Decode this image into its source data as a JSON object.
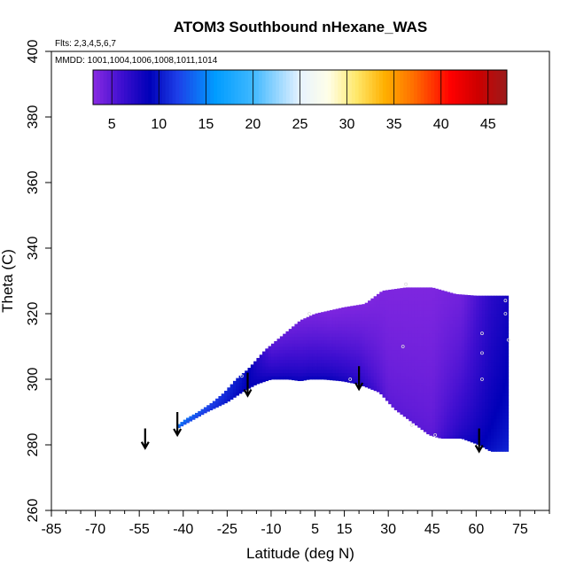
{
  "chart_data": {
    "type": "heatmap",
    "title": "ATOM3 Southbound nHexane_WAS",
    "flights_note": "Flts: 2,3,4,5,6,7",
    "dates_note": "MMDD: 1001,1004,1006,1008,1011,1014",
    "xlabel": "Latitude (deg N)",
    "ylabel": "Theta (C)",
    "xlim": [
      -85,
      85
    ],
    "ylim": [
      260,
      400
    ],
    "x_tick_labels": [
      "-85",
      "-70",
      "-55",
      "-40",
      "-25",
      "-10",
      "5",
      "15",
      "30",
      "45",
      "60",
      "75"
    ],
    "x_minor_ticks": [
      -80,
      -75,
      -65,
      -60,
      -50,
      -45,
      -35,
      -30,
      -20,
      -15,
      -5,
      0,
      10,
      20,
      25,
      35,
      40,
      50,
      55,
      65,
      70,
      80,
      85
    ],
    "y_tick_labels": [
      "260",
      "280",
      "300",
      "320",
      "340",
      "360",
      "380",
      "400"
    ],
    "colorbar": {
      "min": 3,
      "max": 47,
      "tick_labels": [
        "5",
        "10",
        "15",
        "20",
        "25",
        "30",
        "35",
        "40",
        "45"
      ],
      "dividers": [
        3,
        5,
        10,
        15,
        20,
        25,
        30,
        35,
        40,
        45,
        47
      ],
      "color_stops": [
        {
          "v": 3,
          "c": "#8a2be2"
        },
        {
          "v": 6,
          "c": "#3f0fd0"
        },
        {
          "v": 9,
          "c": "#0000b8"
        },
        {
          "v": 12,
          "c": "#1d3fe8"
        },
        {
          "v": 16,
          "c": "#009cff"
        },
        {
          "v": 20,
          "c": "#3fb8ff"
        },
        {
          "v": 25,
          "c": "#e6f2ff"
        },
        {
          "v": 28,
          "c": "#ffffe8"
        },
        {
          "v": 31,
          "c": "#ffe86b"
        },
        {
          "v": 34,
          "c": "#ffb000"
        },
        {
          "v": 37,
          "c": "#ff7000"
        },
        {
          "v": 41,
          "c": "#ff0000"
        },
        {
          "v": 44,
          "c": "#cc0000"
        },
        {
          "v": 47,
          "c": "#9b1c1c"
        }
      ]
    },
    "field": {
      "bottom_boundary": [
        [
          -42,
          285
        ],
        [
          -38,
          287
        ],
        [
          -32,
          290
        ],
        [
          -25,
          293
        ],
        [
          -20,
          296
        ],
        [
          -15,
          298.5
        ],
        [
          -10,
          300
        ],
        [
          -4,
          300
        ],
        [
          0,
          299.5
        ],
        [
          3,
          300
        ],
        [
          8,
          300
        ],
        [
          14,
          299.5
        ],
        [
          20,
          298.5
        ],
        [
          27,
          296
        ],
        [
          32,
          291
        ],
        [
          38,
          287
        ],
        [
          44,
          283
        ],
        [
          48,
          282
        ],
        [
          55,
          282
        ],
        [
          61,
          280
        ],
        [
          65,
          278
        ],
        [
          71,
          278
        ]
      ],
      "top_boundary": [
        [
          -42,
          286
        ],
        [
          -39,
          288
        ],
        [
          -35,
          290
        ],
        [
          -30,
          293
        ],
        [
          -26,
          296
        ],
        [
          -22,
          300
        ],
        [
          -18,
          303
        ],
        [
          -15,
          306
        ],
        [
          -12,
          309
        ],
        [
          -8,
          312
        ],
        [
          -4,
          315
        ],
        [
          0,
          318
        ],
        [
          5,
          320
        ],
        [
          10,
          321
        ],
        [
          15,
          322
        ],
        [
          22,
          323
        ],
        [
          28,
          327
        ],
        [
          36,
          328
        ],
        [
          45,
          328
        ],
        [
          53,
          326
        ],
        [
          60,
          325.5
        ],
        [
          70,
          325.5
        ],
        [
          71,
          276
        ]
      ],
      "value_profiles": [
        {
          "lat": -42,
          "bottom": 12,
          "top": 15
        },
        {
          "lat": -30,
          "bottom": 11,
          "top": 12
        },
        {
          "lat": -20,
          "bottom": 9,
          "top": 10
        },
        {
          "lat": -10,
          "bottom": 9,
          "top": 5
        },
        {
          "lat": 0,
          "bottom": 9,
          "top": 4
        },
        {
          "lat": 10,
          "bottom": 9,
          "top": 3.5
        },
        {
          "lat": 20,
          "bottom": 8,
          "top": 3.5
        },
        {
          "lat": 30,
          "bottom": 5,
          "top": 3.5
        },
        {
          "lat": 45,
          "bottom": 5,
          "top": 3.5
        },
        {
          "lat": 55,
          "bottom": 8,
          "top": 4
        },
        {
          "lat": 65,
          "bottom": 10,
          "top": 7
        },
        {
          "lat": 71,
          "bottom": 11,
          "top": 8
        }
      ],
      "sample_points": [
        [
          -20,
          301
        ],
        [
          3,
          320
        ],
        [
          17,
          300
        ],
        [
          35,
          310
        ],
        [
          38,
          286
        ],
        [
          46,
          283
        ],
        [
          62,
          314
        ],
        [
          62,
          308
        ],
        [
          62,
          300
        ],
        [
          70,
          324
        ],
        [
          70,
          320
        ],
        [
          71,
          312
        ],
        [
          36,
          329
        ]
      ]
    },
    "arrows": [
      {
        "lat": -53,
        "theta_top": 285,
        "theta_tip": 279
      },
      {
        "lat": -42,
        "theta_top": 290,
        "theta_tip": 283
      },
      {
        "lat": -18,
        "theta_top": 302,
        "theta_tip": 295
      },
      {
        "lat": 20,
        "theta_top": 304,
        "theta_tip": 297
      },
      {
        "lat": 61,
        "theta_top": 285,
        "theta_tip": 278
      }
    ]
  }
}
